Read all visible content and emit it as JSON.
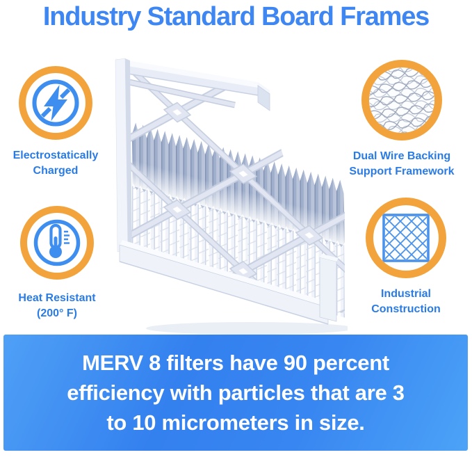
{
  "title": {
    "text": "Industry Standard Board Frames"
  },
  "features": [
    {
      "name": "electrostatically-charged",
      "icon": "lightning-bolt-icon",
      "label_lines": [
        "Electrostatically",
        "Charged"
      ]
    },
    {
      "name": "dual-wire-backing",
      "icon": "wire-mesh-icon",
      "label_lines": [
        "Dual Wire Backing",
        "Support Framework"
      ]
    },
    {
      "name": "heat-resistant",
      "icon": "thermometer-icon",
      "label_lines": [
        "Heat Resistant",
        "(200° F)"
      ]
    },
    {
      "name": "industrial-construction",
      "icon": "diamond-grid-icon",
      "label_lines": [
        "Industrial",
        "Construction"
      ]
    }
  ],
  "banner": {
    "lines": [
      "MERV 8 filters have 90 percent",
      "efficiency with particles that are 3",
      "to 10 micrometers in size."
    ]
  },
  "illustration": {
    "alt": "pleated air filter with board frame"
  },
  "colors": {
    "title_blue": "#3E86F2",
    "label_blue": "#2A7BE4",
    "accent_orange": "#F2A33C",
    "icon_blue": "#3E8EF0",
    "banner_blue_light": "#4FA0F6",
    "banner_blue_dark": "#3380EF",
    "banner_text": "#FFFFFF"
  }
}
